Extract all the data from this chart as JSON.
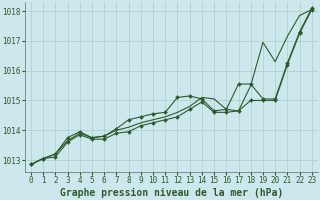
{
  "background_color": "#cce8ed",
  "grid_color": "#aacccc",
  "line_color": "#2d5a2d",
  "marker_color": "#2d5a2d",
  "xlabel": "Graphe pression niveau de la mer (hPa)",
  "ylim": [
    1012.6,
    1018.3
  ],
  "xlim": [
    -0.5,
    23.5
  ],
  "yticks": [
    1013,
    1014,
    1015,
    1016,
    1017,
    1018
  ],
  "xticks": [
    0,
    1,
    2,
    3,
    4,
    5,
    6,
    7,
    8,
    9,
    10,
    11,
    12,
    13,
    14,
    15,
    16,
    17,
    18,
    19,
    20,
    21,
    22,
    23
  ],
  "series1": [
    1012.85,
    1013.05,
    1013.2,
    1013.65,
    1013.9,
    1013.75,
    1013.8,
    1014.0,
    1014.1,
    1014.25,
    1014.35,
    1014.45,
    1014.6,
    1014.8,
    1015.1,
    1015.05,
    1014.7,
    1014.65,
    1015.5,
    1016.95,
    1016.3,
    1017.15,
    1017.85,
    1018.05
  ],
  "series2": [
    1012.85,
    1013.05,
    1013.2,
    1013.75,
    1013.95,
    1013.75,
    1013.8,
    1014.05,
    1014.35,
    1014.45,
    1014.55,
    1014.6,
    1015.1,
    1015.15,
    1015.05,
    1014.65,
    1014.7,
    1015.55,
    1015.55,
    1015.05,
    1015.05,
    1016.25,
    1017.3,
    1018.1
  ],
  "series3": [
    1012.85,
    1013.05,
    1013.1,
    1013.6,
    1013.85,
    1013.7,
    1013.7,
    1013.9,
    1013.95,
    1014.15,
    1014.25,
    1014.35,
    1014.45,
    1014.7,
    1014.95,
    1014.6,
    1014.6,
    1014.65,
    1015.0,
    1015.0,
    1015.0,
    1016.2,
    1017.25,
    1018.05
  ],
  "tick_fontsize": 5.5,
  "xlabel_fontsize": 7.0
}
